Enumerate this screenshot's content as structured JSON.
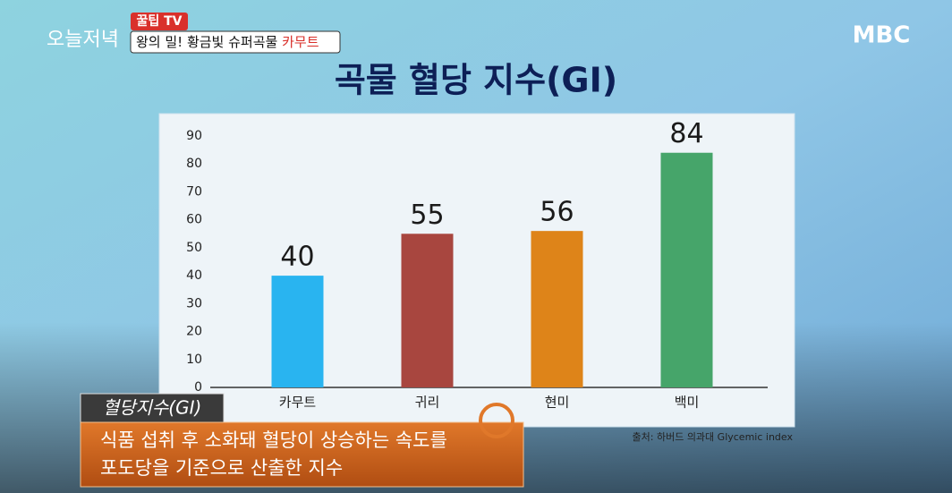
{
  "header": {
    "program": "오늘저녁",
    "segment": "꿀팁 TV",
    "headline": "왕의 밀! 황금빛 슈퍼곡물",
    "headline_highlight": "카무트",
    "channel": "MBC"
  },
  "chart_data": {
    "type": "bar",
    "title": "곡물 혈당 지수(GI)",
    "categories": [
      "카무트",
      "귀리",
      "현미",
      "백미"
    ],
    "values": [
      40,
      55,
      56,
      84
    ],
    "colors": [
      "#29b4f0",
      "#a8463f",
      "#de8419",
      "#46a56a"
    ],
    "ylim": [
      0,
      90
    ],
    "yticks": [
      0,
      10,
      20,
      30,
      40,
      50,
      60,
      70,
      80,
      90
    ],
    "grid": false,
    "source": "출처: 하버드 의과대 Glycemic index"
  },
  "caption": {
    "term": "혈당지수(GI)",
    "lines": [
      "식품 섭취 후 소화돼 혈당이 상승하는 속도를",
      "포도당을 기준으로 산출한 지수"
    ]
  }
}
